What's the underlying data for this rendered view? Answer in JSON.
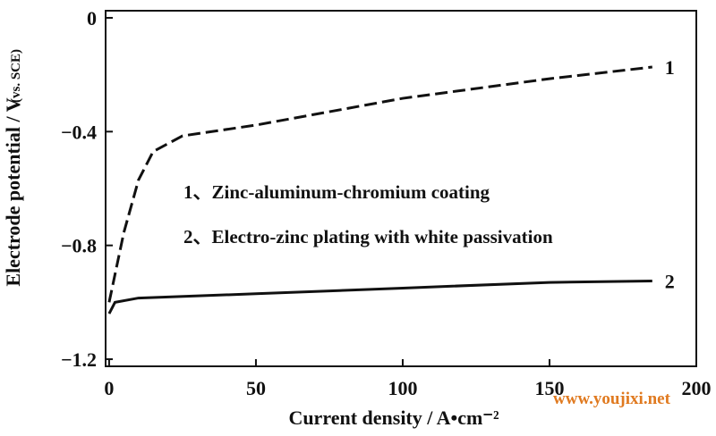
{
  "chart_data": {
    "type": "line",
    "x_label": "Current density / A•cm⁻²",
    "y_label": "Electrode potential / V",
    "y_label_note": "(vs. SCE)",
    "annotations": [
      "1、Zinc-aluminum-chromium coating",
      "2、Electro-zinc plating with white passivation"
    ],
    "watermark": "www.youjixi.net",
    "xlim": [
      -1.2,
      200
    ],
    "xticks": [
      0,
      50,
      100,
      150,
      200
    ],
    "ylim": [
      -1.225,
      0.025
    ],
    "yticks": [
      0,
      {
        "value": -0.4,
        "label": "−0.4"
      },
      {
        "value": -0.8,
        "label": "−0.8"
      },
      {
        "value": -1.2,
        "label": "−1.2"
      }
    ],
    "series": [
      {
        "name": "1",
        "color": "#111111",
        "dash": true,
        "x": [
          0,
          5,
          10,
          15,
          25,
          50,
          100,
          150,
          185
        ],
        "values": [
          -1.0,
          -0.755,
          -0.57,
          -0.47,
          -0.415,
          -0.377,
          -0.283,
          -0.214,
          -0.173
        ]
      },
      {
        "name": "2",
        "color": "#111111",
        "dash": false,
        "x": [
          0,
          2,
          10,
          50,
          100,
          150,
          185
        ],
        "values": [
          -1.04,
          -1.0,
          -0.985,
          -0.97,
          -0.95,
          -0.93,
          -0.925
        ]
      }
    ]
  }
}
